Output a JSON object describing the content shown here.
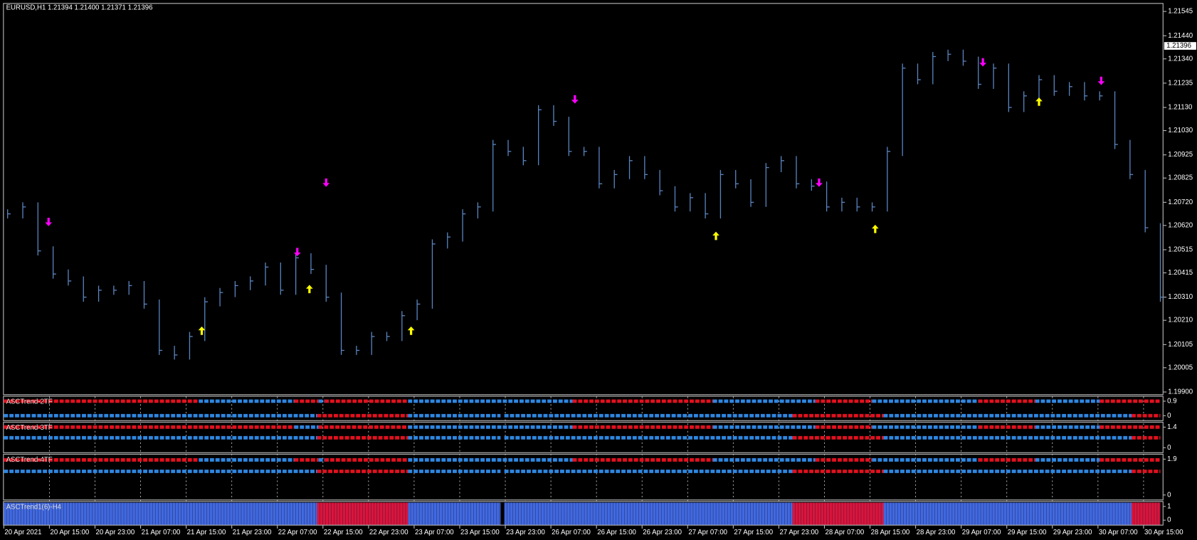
{
  "chart_data": {
    "type": "ohlc",
    "title": "EURUSD,H1  1.21394 1.21400 1.21371 1.21396",
    "x_labels": [
      "20 Apr 2021",
      "20 Apr 15:00",
      "20 Apr 23:00",
      "21 Apr 07:00",
      "21 Apr 15:00",
      "21 Apr 23:00",
      "22 Apr 07:00",
      "22 Apr 15:00",
      "22 Apr 23:00",
      "23 Apr 07:00",
      "23 Apr 15:00",
      "23 Apr 23:00",
      "26 Apr 07:00",
      "26 Apr 15:00",
      "26 Apr 23:00",
      "27 Apr 07:00",
      "27 Apr 15:00",
      "27 Apr 23:00",
      "28 Apr 07:00",
      "28 Apr 15:00",
      "28 Apr 23:00",
      "29 Apr 07:00",
      "29 Apr 15:00",
      "29 Apr 23:00",
      "30 Apr 07:00",
      "30 Apr 15:00"
    ],
    "values": [
      1.2067,
      1.207,
      1.2051,
      1.2041,
      1.2038,
      1.2031,
      1.2034,
      1.2034,
      1.2036,
      1.2028,
      1.2008,
      1.2006,
      1.2014,
      1.2029,
      1.2033,
      1.2036,
      1.2038,
      1.2044,
      1.2034,
      1.2048,
      1.2043,
      1.2031,
      1.2008,
      1.2008,
      1.2014,
      1.2014,
      1.2023,
      1.2028,
      1.2054,
      1.2057,
      1.2067,
      1.207,
      1.2097,
      1.2094,
      1.209,
      1.2112,
      1.2107,
      1.2094,
      1.2094,
      1.208,
      1.2084,
      1.209,
      1.2084,
      1.2077,
      1.207,
      1.2074,
      1.2067,
      1.2084,
      1.208,
      1.2072,
      1.2087,
      1.209,
      1.208,
      1.2079,
      1.207,
      1.2072,
      1.207,
      1.207,
      1.2094,
      1.213,
      1.2125,
      1.2135,
      1.2136,
      1.2133,
      1.2123,
      1.213,
      1.2113,
      1.2118,
      1.2125,
      1.212,
      1.2122,
      1.2118,
      1.2118,
      1.2097,
      1.2084,
      1.2061,
      1.2031
    ],
    "color": "#5a86c2",
    "xlim": [
      -0.25,
      76
    ],
    "ylim": [
      1.1989,
      1.21578
    ],
    "yticks": [
      1.21545,
      {
        "value": 1.2144,
        "label": "1.21440"
      },
      {
        "value": 1.2134,
        "label": "1.21340"
      },
      1.21235,
      {
        "value": 1.2113,
        "label": "1.21130"
      },
      {
        "value": 1.2103,
        "label": "1.21030"
      },
      1.20925,
      1.20825,
      {
        "value": 1.2072,
        "label": "1.20720"
      },
      {
        "value": 1.2062,
        "label": "1.20620"
      },
      1.20515,
      1.20415,
      {
        "value": 1.2031,
        "label": "1.20310"
      },
      {
        "value": 1.2021,
        "label": "1.20210"
      },
      1.20105,
      1.20005,
      {
        "value": 1.199,
        "label": "1.19900"
      }
    ],
    "last_price": 1.21396,
    "sell_signals": {
      "color": "#ff00ff",
      "x": [
        2.7,
        19.1,
        21,
        37.4,
        53.5,
        64.3,
        72.1
      ],
      "values": [
        1.2063,
        1.205,
        1.208,
        1.2116,
        1.208,
        1.2132,
        1.2124
      ]
    },
    "buy_signals": {
      "color": "#ffff00",
      "x": [
        12.8,
        19.9,
        26.6,
        46.7,
        57.2,
        68
      ],
      "values": [
        1.2017,
        1.2035,
        1.2017,
        1.2058,
        1.2061,
        1.2116
      ]
    },
    "indicators": [
      {
        "name": "ASCTrend-2TF",
        "yticks": [
          0.9,
          0
        ],
        "rows": [
          [
            {
              "from": -0.25,
              "to": 12.6,
              "color": "#e3101e"
            },
            {
              "from": 12.6,
              "to": 18.9,
              "color": "#2f86e0"
            },
            {
              "from": 18.9,
              "to": 20.5,
              "color": "#e3101e"
            },
            {
              "from": 20.5,
              "to": 20.9,
              "color": "#2f86e0"
            },
            {
              "from": 20.9,
              "to": 26.4,
              "color": "#e3101e"
            },
            {
              "from": 26.4,
              "to": 37.25,
              "color": "#2f86e0"
            },
            {
              "from": 37.25,
              "to": 46.5,
              "color": "#e3101e"
            },
            {
              "from": 46.5,
              "to": 53.25,
              "color": "#2f86e0"
            },
            {
              "from": 53.25,
              "to": 57,
              "color": "#e3101e"
            },
            {
              "from": 57,
              "to": 64,
              "color": "#2f86e0"
            },
            {
              "from": 64,
              "to": 67.75,
              "color": "#e3101e"
            },
            {
              "from": 67.75,
              "to": 72,
              "color": "#2f86e0"
            },
            {
              "from": 72,
              "to": 76,
              "color": "#e3101e"
            }
          ],
          [
            {
              "from": -0.25,
              "to": 20.4,
              "color": "#2f86e0"
            },
            {
              "from": 20.4,
              "to": 26.4,
              "color": "#e3101e"
            },
            {
              "from": 26.4,
              "to": 32.5,
              "color": "#2f86e0"
            },
            {
              "from": 32.75,
              "to": 51.75,
              "color": "#2f86e0"
            },
            {
              "from": 51.75,
              "to": 57.75,
              "color": "#e3101e"
            },
            {
              "from": 57.75,
              "to": 74.1,
              "color": "#2f86e0"
            },
            {
              "from": 74.1,
              "to": 76,
              "color": "#e3101e"
            }
          ]
        ]
      },
      {
        "name": "ASCTrend-3TF",
        "yticks": [
          1.4,
          0
        ],
        "rows": [
          [
            {
              "from": -0.25,
              "to": 18.9,
              "color": "#e3101e"
            },
            {
              "from": 18.9,
              "to": 20.5,
              "color": "#2f86e0"
            },
            {
              "from": 20.5,
              "to": 26.4,
              "color": "#e3101e"
            },
            {
              "from": 26.4,
              "to": 37.25,
              "color": "#2f86e0"
            },
            {
              "from": 37.25,
              "to": 46.5,
              "color": "#e3101e"
            },
            {
              "from": 46.5,
              "to": 53.25,
              "color": "#2f86e0"
            },
            {
              "from": 53.25,
              "to": 57,
              "color": "#e3101e"
            },
            {
              "from": 57,
              "to": 64,
              "color": "#2f86e0"
            },
            {
              "from": 64,
              "to": 67.75,
              "color": "#e3101e"
            },
            {
              "from": 67.75,
              "to": 72,
              "color": "#2f86e0"
            },
            {
              "from": 72,
              "to": 76,
              "color": "#e3101e"
            }
          ],
          [
            {
              "from": -0.25,
              "to": 20.4,
              "color": "#2f86e0"
            },
            {
              "from": 20.4,
              "to": 26.4,
              "color": "#e3101e"
            },
            {
              "from": 26.4,
              "to": 32.5,
              "color": "#2f86e0"
            },
            {
              "from": 32.75,
              "to": 51.75,
              "color": "#2f86e0"
            },
            {
              "from": 51.75,
              "to": 57.75,
              "color": "#e3101e"
            },
            {
              "from": 57.75,
              "to": 74.1,
              "color": "#2f86e0"
            },
            {
              "from": 74.1,
              "to": 76,
              "color": "#e3101e"
            }
          ]
        ]
      },
      {
        "name": "ASCTrend-4TF",
        "yticks": [
          1.9,
          0
        ],
        "rows": [
          [
            {
              "from": -0.25,
              "to": 12.6,
              "color": "#e3101e"
            },
            {
              "from": 12.6,
              "to": 18.9,
              "color": "#2f86e0"
            },
            {
              "from": 18.9,
              "to": 20.5,
              "color": "#e3101e"
            },
            {
              "from": 20.5,
              "to": 20.9,
              "color": "#2f86e0"
            },
            {
              "from": 20.9,
              "to": 26.4,
              "color": "#e3101e"
            },
            {
              "from": 26.4,
              "to": 37.25,
              "color": "#2f86e0"
            },
            {
              "from": 37.25,
              "to": 46.5,
              "color": "#e3101e"
            },
            {
              "from": 46.5,
              "to": 53.25,
              "color": "#2f86e0"
            },
            {
              "from": 53.25,
              "to": 57,
              "color": "#e3101e"
            },
            {
              "from": 57,
              "to": 64,
              "color": "#2f86e0"
            },
            {
              "from": 64,
              "to": 67.75,
              "color": "#e3101e"
            },
            {
              "from": 67.75,
              "to": 72,
              "color": "#2f86e0"
            },
            {
              "from": 72,
              "to": 76,
              "color": "#e3101e"
            }
          ],
          [
            {
              "from": -0.25,
              "to": 20.4,
              "color": "#2f86e0"
            },
            {
              "from": 20.4,
              "to": 26.4,
              "color": "#e3101e"
            },
            {
              "from": 26.4,
              "to": 32.5,
              "color": "#2f86e0"
            },
            {
              "from": 32.75,
              "to": 51.75,
              "color": "#2f86e0"
            },
            {
              "from": 51.75,
              "to": 57.75,
              "color": "#e3101e"
            },
            {
              "from": 57.75,
              "to": 74.1,
              "color": "#2f86e0"
            },
            {
              "from": 74.1,
              "to": 76,
              "color": "#e3101e"
            }
          ]
        ]
      },
      {
        "name": "ASCTrend1(6)-H4",
        "yticks": [
          1,
          0
        ],
        "rows": [
          [
            {
              "from": -0.25,
              "to": 20.4,
              "color": "#4169e1"
            },
            {
              "from": 20.4,
              "to": 26.4,
              "color": "#dc143c"
            },
            {
              "from": 26.4,
              "to": 32.5,
              "color": "#4169e1"
            },
            {
              "from": 32.75,
              "to": 51.75,
              "color": "#4169e1"
            },
            {
              "from": 51.75,
              "to": 57.75,
              "color": "#dc143c"
            },
            {
              "from": 57.75,
              "to": 74.1,
              "color": "#4169e1"
            },
            {
              "from": 74.1,
              "to": 76,
              "color": "#dc143c"
            }
          ]
        ]
      }
    ]
  }
}
